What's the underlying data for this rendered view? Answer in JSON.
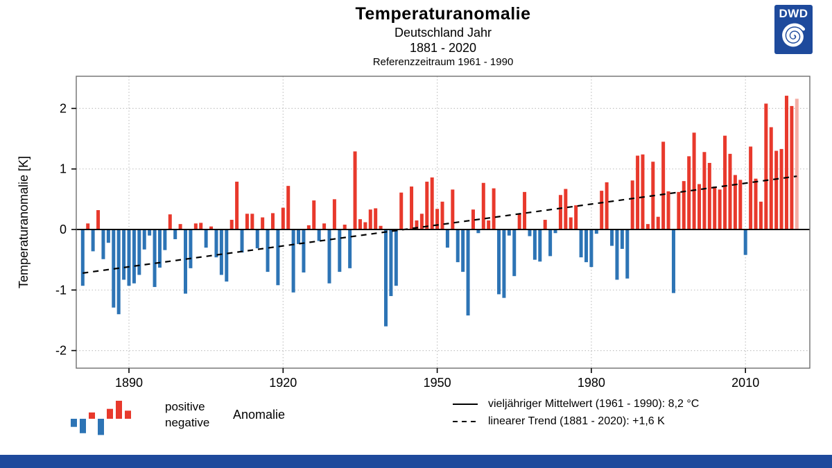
{
  "header": {
    "title": "Temperaturanomalie",
    "subtitle1": "Deutschland Jahr",
    "subtitle2": "1881 - 2020",
    "subtitle3": "Referenzzeitraum 1961 - 1990"
  },
  "logo": {
    "text": "DWD",
    "icon": "dwd-spiral-icon",
    "color": "#1e4a9c"
  },
  "footer": {
    "color": "#1e4a9c"
  },
  "legend_left": {
    "icon": "mini-anomaly-bars-icon",
    "mini_bars": [
      -0.45,
      -0.8,
      0.35,
      -0.9,
      0.55,
      1.0,
      0.45
    ],
    "line1": "positive",
    "line2": "negative",
    "label": "Anomalie"
  },
  "legend_right": {
    "mean_label": "vieljähriger Mittelwert (1961 - 1990): 8,2 °C",
    "trend_label": "linearer Trend (1881 - 2020): +1,6 K"
  },
  "chart_data": {
    "type": "bar",
    "title": "Temperaturanomalie",
    "subtitle": "Deutschland Jahr 1881 - 2020, Referenzzeitraum 1961 - 1990",
    "xlabel": "",
    "ylabel": "Temperaturanomalie [K]",
    "start_year": 1881,
    "end_year": 2020,
    "x_ticks": [
      1890,
      1920,
      1950,
      1980,
      2010
    ],
    "y_ticks": [
      -2,
      -1,
      0,
      1,
      2
    ],
    "ylim": [
      -2.3,
      2.55
    ],
    "grid": true,
    "legend_position": "bottom",
    "values": [
      -0.93,
      0.1,
      -0.36,
      0.32,
      -0.49,
      -0.22,
      -1.29,
      -1.4,
      -0.83,
      -0.93,
      -0.89,
      -0.75,
      -0.33,
      -0.1,
      -0.95,
      -0.63,
      -0.34,
      0.25,
      -0.16,
      0.09,
      -1.06,
      -0.64,
      0.1,
      0.11,
      -0.3,
      0.05,
      -0.46,
      -0.75,
      -0.86,
      0.16,
      0.79,
      -0.38,
      0.26,
      0.26,
      -0.31,
      0.2,
      -0.7,
      0.27,
      -0.92,
      0.36,
      0.72,
      -1.04,
      -0.24,
      -0.71,
      0.07,
      0.48,
      -0.19,
      0.1,
      -0.89,
      0.5,
      -0.7,
      0.08,
      -0.64,
      1.29,
      0.17,
      0.12,
      0.33,
      0.35,
      0.06,
      -1.6,
      -1.1,
      -0.93,
      0.61,
      0.0,
      0.71,
      0.15,
      0.26,
      0.79,
      0.86,
      0.34,
      0.46,
      -0.3,
      0.66,
      -0.54,
      -0.7,
      -1.42,
      0.33,
      -0.06,
      0.77,
      0.15,
      0.68,
      -1.07,
      -1.13,
      -0.1,
      -0.77,
      0.26,
      0.62,
      -0.11,
      -0.5,
      -0.53,
      0.16,
      -0.44,
      -0.06,
      0.57,
      0.67,
      0.2,
      0.4,
      -0.46,
      -0.54,
      -0.62,
      -0.07,
      0.64,
      0.78,
      -0.27,
      -0.83,
      -0.32,
      -0.81,
      0.81,
      1.22,
      1.24,
      0.09,
      1.12,
      0.21,
      1.45,
      0.63,
      -1.05,
      0.62,
      0.8,
      1.21,
      1.6,
      0.75,
      1.28,
      1.1,
      0.71,
      0.66,
      1.55,
      1.25,
      0.9,
      0.82,
      -0.42,
      1.37,
      0.84,
      0.46,
      2.08,
      1.69,
      1.3,
      1.33,
      2.21,
      2.04,
      2.16
    ],
    "preliminary_years": [
      2020
    ],
    "mean_reference": {
      "value_label": "8,2 °C",
      "anomaly": 0
    },
    "trend": {
      "start_value": -0.72,
      "end_value": 0.88,
      "total_label": "+1,6 K"
    },
    "colors": {
      "positive": "#e8392c",
      "negative": "#2d74b5",
      "preliminary": "#f5ada4",
      "grid": "#c3c3c3",
      "frame": "#6e6e6e",
      "axis_text": "#000000"
    }
  }
}
